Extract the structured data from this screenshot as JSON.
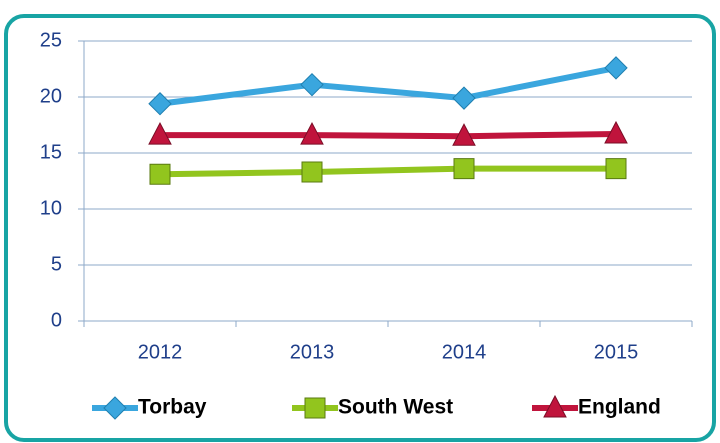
{
  "chart_data": {
    "type": "line",
    "categories": [
      "2012",
      "2013",
      "2014",
      "2015"
    ],
    "series": [
      {
        "name": "Torbay",
        "color": "#3aa6de",
        "marker": "diamond",
        "values": [
          19.4,
          21.1,
          19.9,
          22.6
        ]
      },
      {
        "name": "South West",
        "color": "#92c51e",
        "marker": "square",
        "values": [
          13.1,
          13.3,
          13.6,
          13.6
        ]
      },
      {
        "name": "England",
        "color": "#c0143c",
        "marker": "triangle",
        "values": [
          16.6,
          16.6,
          16.5,
          16.7
        ]
      }
    ],
    "ylim": [
      0,
      25
    ],
    "yticks": [
      0,
      5,
      10,
      15,
      20,
      25
    ],
    "grid": true,
    "legend": "bottom"
  }
}
